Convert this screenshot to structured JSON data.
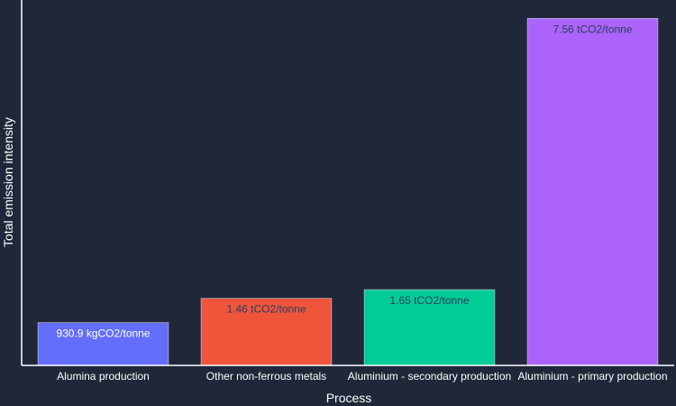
{
  "chart_data": {
    "type": "bar",
    "categories": [
      "Alumina production",
      "Other non-ferrous metals",
      "Aluminium - secondary production",
      "Aluminium - primary production"
    ],
    "values": [
      0.9309,
      1.46,
      1.65,
      7.56
    ],
    "data_labels": [
      "930.9 kgCO2/tonne",
      "1.46 tCO2/tonne",
      "1.65 tCO2/tonne",
      "7.56 tCO2/tonne"
    ],
    "colors": [
      "#636efa",
      "#ef553b",
      "#00cc96",
      "#ab63fa"
    ],
    "label_colors": [
      "#ffffff",
      "#2a3f5f",
      "#2a3f5f",
      "#2a3f5f"
    ],
    "xlabel": "Process",
    "ylabel": "Total emission intensity",
    "ylim": [
      0,
      7.96
    ],
    "grid": false,
    "legend": false,
    "background": "#1f2739",
    "axis_color": "#ffffff"
  }
}
